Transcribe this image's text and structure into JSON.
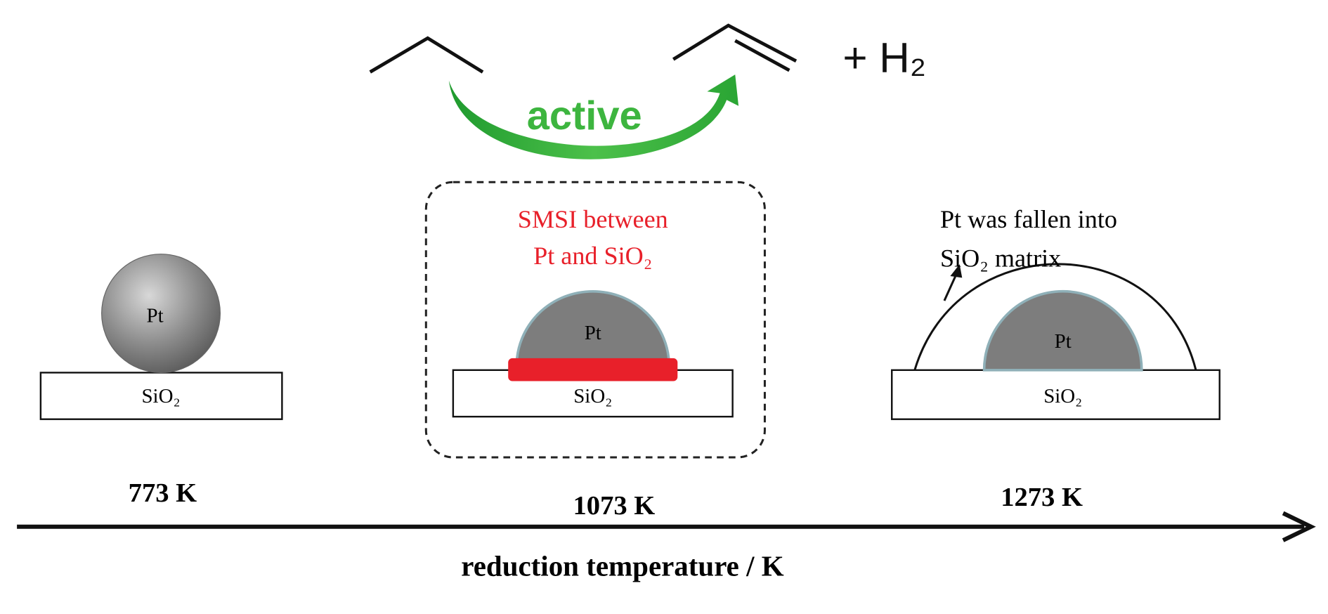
{
  "reaction": {
    "label": "active",
    "product_extra": "+ H₂"
  },
  "panels": [
    {
      "particle": "Pt",
      "support": "SiO₂",
      "temperature": "773 K"
    },
    {
      "note": [
        "SMSI between",
        "Pt and SiO₂"
      ],
      "particle": "Pt",
      "support": "SiO₂",
      "temperature": "1073 K"
    },
    {
      "note": [
        "Pt was fallen into",
        "SiO₂ matrix"
      ],
      "particle": "Pt",
      "support": "SiO₂",
      "temperature": "1273 K"
    }
  ],
  "axis": {
    "label": "reduction temperature / K"
  }
}
